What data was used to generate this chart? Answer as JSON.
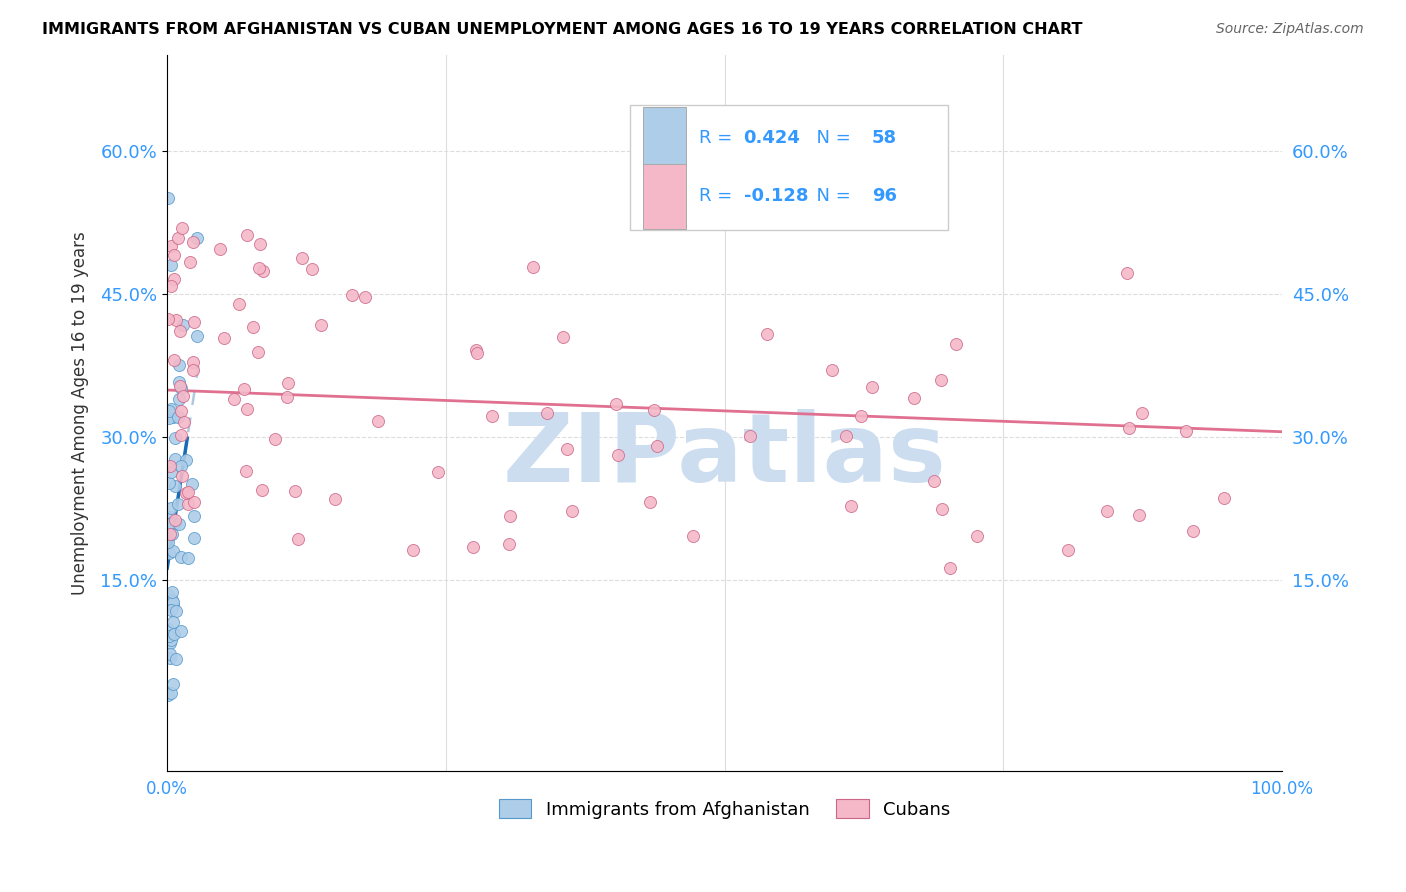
{
  "title": "IMMIGRANTS FROM AFGHANISTAN VS CUBAN UNEMPLOYMENT AMONG AGES 16 TO 19 YEARS CORRELATION CHART",
  "source": "Source: ZipAtlas.com",
  "ylabel": "Unemployment Among Ages 16 to 19 years",
  "legend_label_afghanistan": "Immigrants from Afghanistan",
  "legend_label_cubans": "Cubans",
  "r_afghanistan": 0.424,
  "n_afghanistan": 58,
  "r_cubans": -0.128,
  "n_cubans": 96,
  "color_afghanistan": "#aecde8",
  "color_cubans": "#f4b8c8",
  "color_trend_afghanistan": "#1a6bb5",
  "color_trend_cubans": "#e07090",
  "color_trend_afg_dashed": "#b0c8e0",
  "ytick_values": [
    0.15,
    0.3,
    0.45,
    0.6
  ],
  "watermark_text": "ZIPatlas",
  "watermark_color": "#ccddf0",
  "xlim": [
    0.0,
    1.0
  ],
  "ylim": [
    -0.05,
    0.7
  ]
}
